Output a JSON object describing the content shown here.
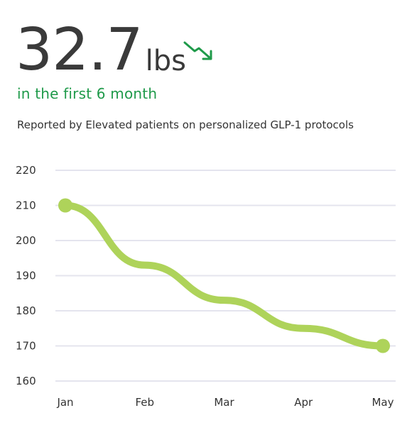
{
  "header": {
    "value": "32.7",
    "unit": "lbs",
    "subtitle": "in the first 6 month",
    "caption": "Reported by Elevated patients on personalized GLP-1 protocols",
    "trend_icon": "trend-down-arrow",
    "accent_color": "#1f9a4a"
  },
  "chart_data": {
    "type": "line",
    "categories": [
      "Jan",
      "Feb",
      "Mar",
      "Apr",
      "May"
    ],
    "values": [
      210,
      193,
      183,
      175,
      170
    ],
    "ylim": [
      160,
      220
    ],
    "yticks": [
      220,
      210,
      200,
      190,
      180,
      170,
      160
    ],
    "grid": true,
    "smooth": true,
    "line_color": "#aed35a",
    "grid_color": "#e4e4ee",
    "markers": "endpoints-only"
  }
}
